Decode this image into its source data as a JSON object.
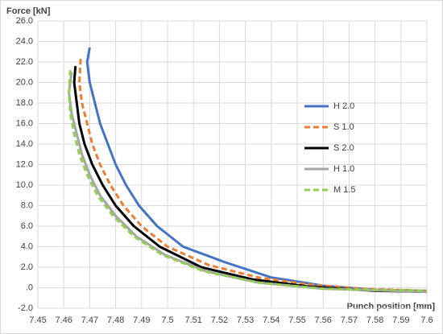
{
  "chart_data": {
    "type": "line",
    "y_label": "Force [kN]",
    "x_label": "Punch position [mm]",
    "xlim": [
      7.45,
      7.6
    ],
    "xticks": [
      7.45,
      7.46,
      7.47,
      7.48,
      7.49,
      7.5,
      7.51,
      7.52,
      7.53,
      7.54,
      7.55,
      7.56,
      7.57,
      7.58,
      7.59,
      7.6
    ],
    "ylim": [
      -2,
      26
    ],
    "yticks": [
      {
        "value": -2,
        "label": "-2.0"
      },
      {
        "value": 0,
        "label": ".0"
      },
      {
        "value": 2,
        "label": "2.0"
      },
      {
        "value": 4,
        "label": "4.0"
      },
      {
        "value": 6,
        "label": "6.0"
      },
      {
        "value": 8,
        "label": "8.0"
      },
      {
        "value": 10,
        "label": "10.0"
      },
      {
        "value": 12,
        "label": "12.0"
      },
      {
        "value": 14,
        "label": "14.0"
      },
      {
        "value": 16,
        "label": "16.0"
      },
      {
        "value": 18,
        "label": "18.0"
      },
      {
        "value": 20,
        "label": "20.0"
      },
      {
        "value": 22,
        "label": "22.0"
      },
      {
        "value": 24,
        "label": "24.0"
      },
      {
        "value": 26,
        "label": "26.0"
      }
    ],
    "grid": true,
    "legend": "right",
    "series": [
      {
        "name": "H 2.0",
        "color": "#4472c4",
        "dashed": false,
        "x": [
          7.47,
          7.469,
          7.47,
          7.472,
          7.474,
          7.477,
          7.48,
          7.484,
          7.489,
          7.496,
          7.506,
          7.522,
          7.54,
          7.56,
          7.58,
          7.6
        ],
        "values": [
          23.4,
          22,
          20,
          18,
          16,
          14,
          12,
          10,
          8,
          6,
          4,
          2.5,
          1,
          0.2,
          -0.2,
          -0.3
        ]
      },
      {
        "name": "S 1.0",
        "color": "#ed7d31",
        "dashed": true,
        "x": [
          7.4665,
          7.466,
          7.467,
          7.469,
          7.471,
          7.474,
          7.478,
          7.483,
          7.49,
          7.5,
          7.516,
          7.535,
          7.555,
          7.575,
          7.6
        ],
        "values": [
          22.3,
          20,
          18,
          16,
          14,
          12,
          10,
          8,
          6,
          4,
          2.2,
          1,
          0.3,
          -0.1,
          -0.3
        ]
      },
      {
        "name": "S 2.0",
        "color": "#000000",
        "dashed": false,
        "x": [
          7.4645,
          7.464,
          7.465,
          7.466,
          7.468,
          7.471,
          7.475,
          7.48,
          7.487,
          7.497,
          7.513,
          7.533,
          7.555,
          7.58,
          7.6
        ],
        "values": [
          21.6,
          20,
          18,
          16,
          14,
          12,
          10,
          8,
          6,
          4,
          2,
          0.8,
          0.1,
          -0.3,
          -0.4
        ]
      },
      {
        "name": "H 1.0",
        "color": "#a5a5a5",
        "dashed": false,
        "x": [
          7.463,
          7.462,
          7.463,
          7.465,
          7.467,
          7.47,
          7.474,
          7.48,
          7.488,
          7.499,
          7.515,
          7.535,
          7.56,
          7.6
        ],
        "values": [
          21.0,
          19,
          17,
          15,
          13,
          11,
          9,
          7,
          5,
          3.2,
          1.6,
          0.5,
          -0.1,
          -0.4
        ]
      },
      {
        "name": "M 1.5",
        "color": "#92d050",
        "dashed": true,
        "x": [
          7.4625,
          7.462,
          7.4625,
          7.464,
          7.466,
          7.469,
          7.473,
          7.479,
          7.487,
          7.498,
          7.514,
          7.535,
          7.56,
          7.6
        ],
        "values": [
          21.2,
          19,
          17,
          15,
          13,
          11,
          9,
          7,
          5,
          3.2,
          1.6,
          0.5,
          -0.1,
          -0.3
        ]
      }
    ]
  }
}
